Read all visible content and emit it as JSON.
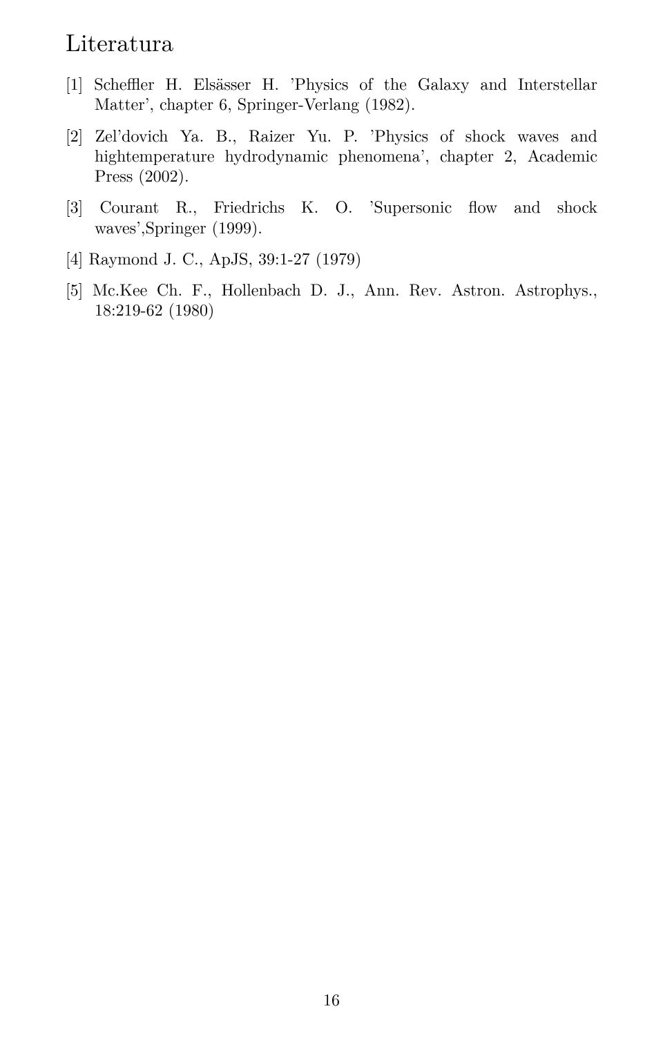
{
  "typography": {
    "font_family": "Latin Modern Roman / Computer Modern serif",
    "title_fontsize_pt": 20,
    "body_fontsize_pt": 14,
    "page_number_fontsize_pt": 14,
    "text_color": "#000000",
    "background_color": "#ffffff",
    "justify": true
  },
  "section": {
    "title": "Literatura"
  },
  "references": [
    {
      "label": "[1]",
      "text": "Scheffler H. Elsässer H. ’Physics of the Galaxy and Interstellar Matter’, chapter 6, Springer-Verlang (1982)."
    },
    {
      "label": "[2]",
      "text": "Zel’dovich Ya. B., Raizer Yu. P. ’Physics of shock waves and hightemperature hydrodynamic phenomena’, chapter 2, Academic Press (2002)."
    },
    {
      "label": "[3]",
      "text": "Courant R., Friedrichs K. O. ’Supersonic flow and shock waves’,Springer (1999)."
    },
    {
      "label": "[4]",
      "text": "Raymond J. C., ApJS, 39:1-27 (1979)"
    },
    {
      "label": "[5]",
      "text": "Mc.Kee Ch. F., Hollenbach D. J., Ann. Rev. Astron. Astrophys., 18:219-62 (1980)"
    }
  ],
  "page_number": "16"
}
